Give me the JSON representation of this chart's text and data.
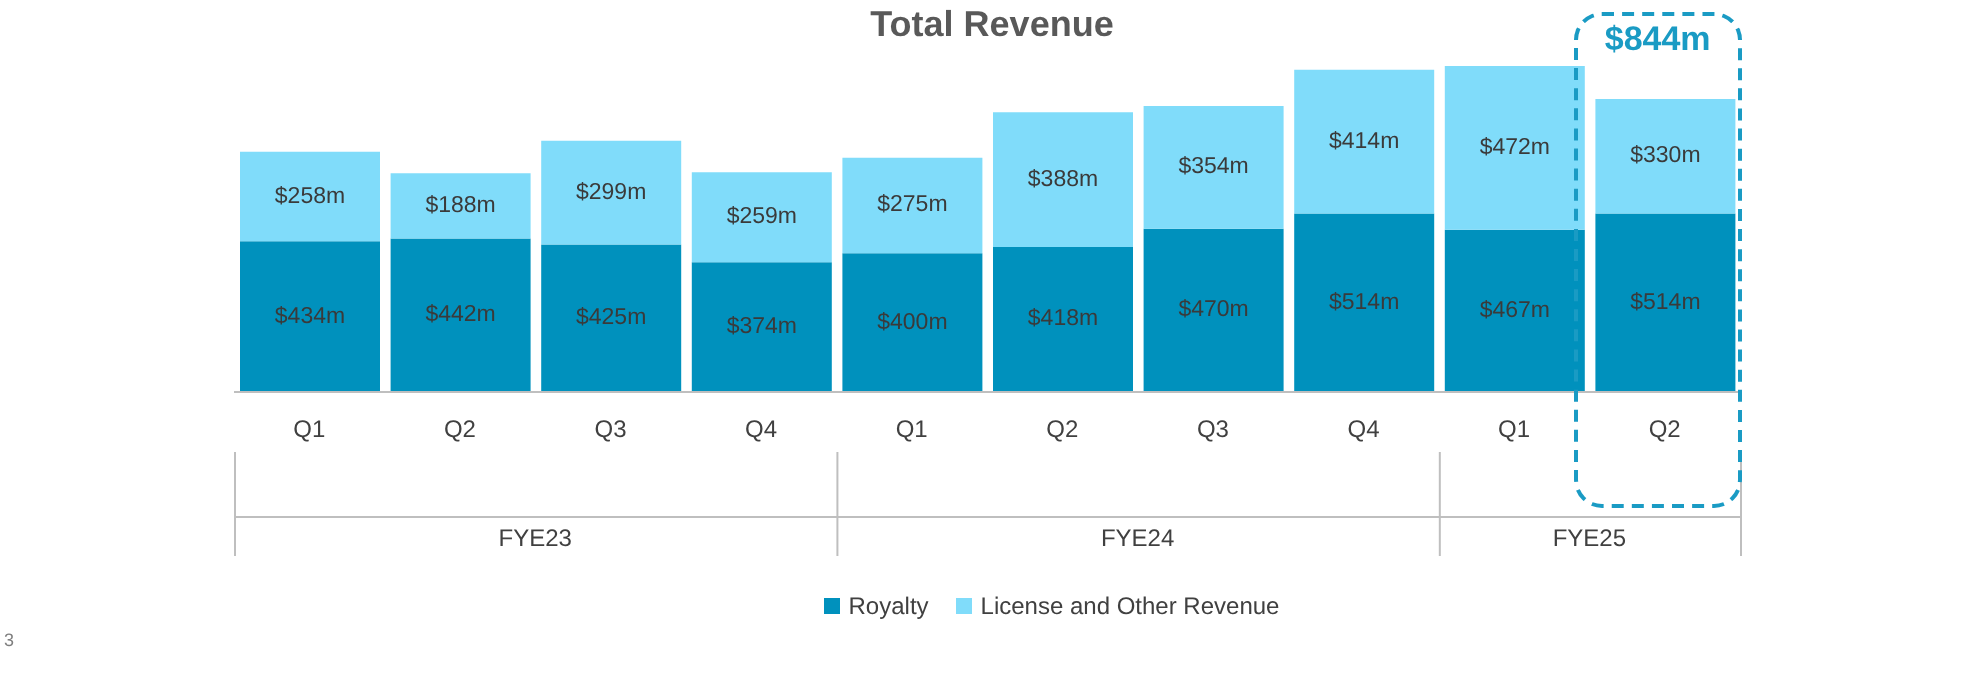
{
  "chart_data": {
    "type": "bar",
    "title": "Total Revenue",
    "stacked": true,
    "legend": "bottom",
    "categories": [
      "Q1",
      "Q2",
      "Q3",
      "Q4",
      "Q1",
      "Q2",
      "Q3",
      "Q4",
      "Q1",
      "Q2"
    ],
    "series": [
      {
        "name": "Royalty",
        "color": "#0091bd",
        "values": [
          434,
          442,
          425,
          374,
          400,
          418,
          470,
          514,
          467,
          514
        ],
        "value_labels": [
          "$434m",
          "$442m",
          "$425m",
          "$374m",
          "$400m",
          "$418m",
          "$470m",
          "$514m",
          "$467m",
          "$514m"
        ]
      },
      {
        "name": "License and Other Revenue",
        "color": "#80dcfa",
        "values": [
          258,
          188,
          299,
          259,
          275,
          388,
          354,
          414,
          472,
          330
        ],
        "value_labels": [
          "$258m",
          "$188m",
          "$299m",
          "$259m",
          "$275m",
          "$388m",
          "$354m",
          "$414m",
          "$472m",
          "$330m"
        ]
      }
    ],
    "annotations": [
      "$844m",
      "FYE23",
      "FYE24",
      "FYE25",
      "3"
    ]
  }
}
